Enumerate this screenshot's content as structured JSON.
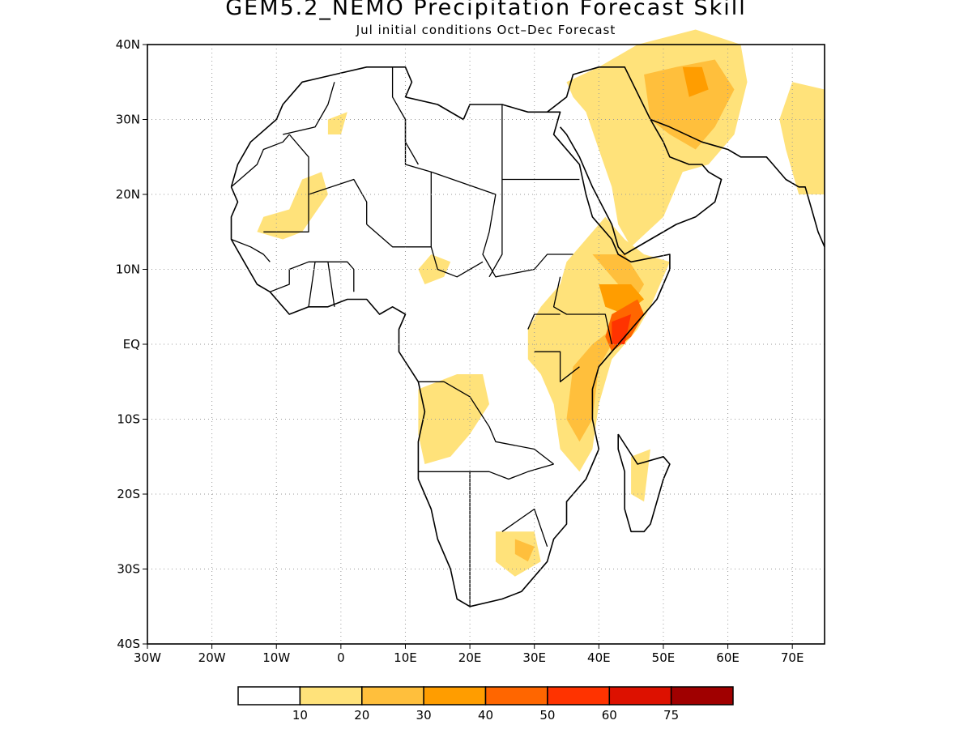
{
  "title": "GEM5.2_NEMO Precipitation Forecast Skill",
  "subtitle": "Jul initial conditions   Oct–Dec Forecast",
  "map": {
    "lon_range": [
      -30,
      75
    ],
    "lat_range": [
      -40,
      40
    ],
    "grid": true,
    "lat_ticks": [
      {
        "value": 40,
        "label": "40N"
      },
      {
        "value": 30,
        "label": "30N"
      },
      {
        "value": 20,
        "label": "20N"
      },
      {
        "value": 10,
        "label": "10N"
      },
      {
        "value": 0,
        "label": "EQ"
      },
      {
        "value": -10,
        "label": "10S"
      },
      {
        "value": -20,
        "label": "20S"
      },
      {
        "value": -30,
        "label": "30S"
      },
      {
        "value": -40,
        "label": "40S"
      }
    ],
    "lon_ticks": [
      {
        "value": -30,
        "label": "30W"
      },
      {
        "value": -20,
        "label": "20W"
      },
      {
        "value": -10,
        "label": "10W"
      },
      {
        "value": 0,
        "label": "0"
      },
      {
        "value": 10,
        "label": "10E"
      },
      {
        "value": 20,
        "label": "20E"
      },
      {
        "value": 30,
        "label": "30E"
      },
      {
        "value": 40,
        "label": "40E"
      },
      {
        "value": 50,
        "label": "50E"
      },
      {
        "value": 60,
        "label": "60E"
      },
      {
        "value": 70,
        "label": "70E"
      }
    ]
  },
  "legend": {
    "colors": [
      "#ffffff",
      "#ffe27a",
      "#ffbf3c",
      "#ff9d00",
      "#ff6600",
      "#ff3300",
      "#dd1100",
      "#a00000"
    ],
    "labels": [
      "10",
      "20",
      "30",
      "40",
      "50",
      "60",
      "75"
    ]
  },
  "skill_regions": [
    {
      "level": 1,
      "coords": [
        [
          38,
          14
        ],
        [
          41,
          17
        ],
        [
          44,
          14
        ],
        [
          47,
          12
        ],
        [
          51,
          11
        ],
        [
          48,
          5
        ],
        [
          46,
          2
        ],
        [
          42,
          -2
        ],
        [
          40,
          -8
        ],
        [
          39,
          -14
        ],
        [
          37,
          -17
        ],
        [
          34,
          -14
        ],
        [
          33,
          -8
        ],
        [
          31,
          -4
        ],
        [
          29,
          -2
        ],
        [
          29,
          2
        ],
        [
          31,
          5
        ],
        [
          34,
          8
        ],
        [
          35,
          11
        ]
      ]
    },
    {
      "level": 1,
      "coords": [
        [
          35,
          35
        ],
        [
          40,
          37
        ],
        [
          46,
          40
        ],
        [
          55,
          42
        ],
        [
          62,
          40
        ],
        [
          63,
          35
        ],
        [
          61,
          28
        ],
        [
          57,
          24
        ],
        [
          53,
          23
        ],
        [
          50,
          17
        ],
        [
          45,
          13
        ],
        [
          43,
          16
        ],
        [
          42,
          21
        ],
        [
          40,
          26
        ],
        [
          38,
          31
        ],
        [
          36,
          33
        ]
      ]
    },
    {
      "level": 1,
      "coords": [
        [
          70,
          35
        ],
        [
          75,
          34
        ],
        [
          75,
          20
        ],
        [
          71,
          20
        ],
        [
          69,
          26
        ],
        [
          68,
          30
        ]
      ]
    },
    {
      "level": 1,
      "coords": [
        [
          12,
          -6
        ],
        [
          18,
          -4
        ],
        [
          22,
          -4
        ],
        [
          23,
          -8
        ],
        [
          20,
          -12
        ],
        [
          17,
          -15
        ],
        [
          13,
          -16
        ],
        [
          12,
          -12
        ]
      ]
    },
    {
      "level": 1,
      "coords": [
        [
          24,
          -25
        ],
        [
          30,
          -25
        ],
        [
          31,
          -29
        ],
        [
          27,
          -31
        ],
        [
          24,
          -29
        ]
      ]
    },
    {
      "level": 1,
      "coords": [
        [
          -13,
          15
        ],
        [
          -9,
          14
        ],
        [
          -6,
          15
        ],
        [
          -2,
          20
        ],
        [
          -3,
          23
        ],
        [
          -6,
          22
        ],
        [
          -8,
          18
        ],
        [
          -12,
          17
        ]
      ]
    },
    {
      "level": 1,
      "coords": [
        [
          -2,
          30
        ],
        [
          1,
          31
        ],
        [
          0,
          28
        ],
        [
          -2,
          28
        ]
      ]
    },
    {
      "level": 1,
      "coords": [
        [
          14,
          12
        ],
        [
          17,
          11
        ],
        [
          16,
          9
        ],
        [
          13,
          8
        ],
        [
          12,
          10
        ]
      ]
    },
    {
      "level": 1,
      "coords": [
        [
          45,
          -15
        ],
        [
          48,
          -14
        ],
        [
          47,
          -21
        ],
        [
          45,
          -20
        ]
      ]
    },
    {
      "level": 2,
      "coords": [
        [
          39,
          12
        ],
        [
          44,
          12
        ],
        [
          47,
          8
        ],
        [
          45,
          5
        ],
        [
          42,
          2
        ],
        [
          39,
          0
        ],
        [
          36,
          -3
        ],
        [
          35,
          -10
        ],
        [
          37,
          -13
        ],
        [
          39,
          -10
        ],
        [
          40,
          -3
        ],
        [
          42,
          0
        ],
        [
          45,
          3
        ],
        [
          44,
          7
        ]
      ]
    },
    {
      "level": 2,
      "coords": [
        [
          47,
          36
        ],
        [
          52,
          37
        ],
        [
          58,
          38
        ],
        [
          61,
          34
        ],
        [
          58,
          29
        ],
        [
          55,
          26
        ],
        [
          51,
          28
        ],
        [
          48,
          30
        ]
      ]
    },
    {
      "level": 2,
      "coords": [
        [
          27,
          -26
        ],
        [
          30,
          -27
        ],
        [
          29,
          -29
        ],
        [
          27,
          -28
        ]
      ]
    },
    {
      "level": 3,
      "coords": [
        [
          40,
          8
        ],
        [
          45,
          8
        ],
        [
          47,
          6
        ],
        [
          44,
          4
        ],
        [
          41,
          5
        ]
      ]
    },
    {
      "level": 3,
      "coords": [
        [
          53,
          37
        ],
        [
          56,
          37
        ],
        [
          57,
          34
        ],
        [
          54,
          33
        ]
      ]
    },
    {
      "level": 4,
      "coords": [
        [
          42,
          4
        ],
        [
          46,
          6
        ],
        [
          47,
          4
        ],
        [
          45,
          1
        ],
        [
          42,
          -1
        ],
        [
          41,
          1
        ]
      ]
    },
    {
      "level": 5,
      "coords": [
        [
          42,
          3
        ],
        [
          45,
          4
        ],
        [
          44,
          0
        ],
        [
          42,
          0
        ]
      ]
    }
  ],
  "coastline": [
    [
      [
        -17,
        21
      ],
      [
        -16,
        24
      ],
      [
        -14,
        27
      ],
      [
        -10,
        30
      ],
      [
        -9,
        32
      ],
      [
        -6,
        35
      ],
      [
        -1,
        36
      ],
      [
        4,
        37
      ],
      [
        10,
        37
      ],
      [
        11,
        35
      ],
      [
        10,
        33
      ],
      [
        15,
        32
      ],
      [
        19,
        30
      ],
      [
        20,
        32
      ],
      [
        25,
        32
      ],
      [
        29,
        31
      ],
      [
        32,
        31
      ],
      [
        34,
        31
      ],
      [
        33,
        28
      ],
      [
        34,
        27
      ],
      [
        37,
        24
      ],
      [
        38,
        20
      ],
      [
        39,
        17
      ],
      [
        42,
        14
      ],
      [
        43,
        12
      ],
      [
        45,
        11
      ],
      [
        51,
        12
      ],
      [
        51,
        10
      ],
      [
        49,
        6
      ],
      [
        47,
        4
      ],
      [
        44,
        1
      ],
      [
        42,
        -1
      ],
      [
        40,
        -3
      ],
      [
        39,
        -6
      ],
      [
        39,
        -10
      ],
      [
        40,
        -14
      ],
      [
        38,
        -18
      ],
      [
        35,
        -21
      ],
      [
        35,
        -24
      ],
      [
        33,
        -26
      ],
      [
        32,
        -29
      ],
      [
        30,
        -31
      ],
      [
        28,
        -33
      ],
      [
        25,
        -34
      ],
      [
        20,
        -35
      ],
      [
        18,
        -34
      ],
      [
        17,
        -30
      ],
      [
        15,
        -26
      ],
      [
        14,
        -22
      ],
      [
        12,
        -18
      ],
      [
        12,
        -13
      ],
      [
        13,
        -9
      ],
      [
        12,
        -5
      ],
      [
        9,
        -1
      ],
      [
        9,
        2
      ],
      [
        10,
        4
      ],
      [
        8,
        5
      ],
      [
        6,
        4
      ],
      [
        4,
        6
      ],
      [
        1,
        6
      ],
      [
        -2,
        5
      ],
      [
        -5,
        5
      ],
      [
        -8,
        4
      ],
      [
        -11,
        7
      ],
      [
        -13,
        8
      ],
      [
        -15,
        11
      ],
      [
        -17,
        14
      ],
      [
        -17,
        17
      ],
      [
        -16,
        19
      ],
      [
        -17,
        21
      ]
    ],
    [
      [
        43,
        -12
      ],
      [
        46,
        -16
      ],
      [
        50,
        -15
      ],
      [
        51,
        -16
      ],
      [
        50,
        -18
      ],
      [
        48,
        -24
      ],
      [
        47,
        -25
      ],
      [
        45,
        -25
      ],
      [
        44,
        -22
      ],
      [
        44,
        -17
      ],
      [
        43,
        -14
      ],
      [
        43,
        -12
      ]
    ],
    [
      [
        32,
        31
      ],
      [
        35,
        33
      ],
      [
        36,
        36
      ],
      [
        40,
        37
      ],
      [
        44,
        37
      ],
      [
        48,
        30
      ],
      [
        50,
        27
      ],
      [
        51,
        25
      ],
      [
        54,
        24
      ],
      [
        56,
        24
      ],
      [
        57,
        23
      ],
      [
        59,
        22
      ],
      [
        58,
        19
      ],
      [
        55,
        17
      ],
      [
        52,
        16
      ],
      [
        48,
        14
      ],
      [
        44,
        12
      ],
      [
        43,
        13
      ],
      [
        42,
        16
      ],
      [
        39,
        21
      ],
      [
        37,
        25
      ],
      [
        35,
        28
      ],
      [
        34,
        29
      ]
    ],
    [
      [
        48,
        30
      ],
      [
        51,
        29
      ],
      [
        56,
        27
      ],
      [
        60,
        26
      ],
      [
        62,
        25
      ],
      [
        66,
        25
      ],
      [
        67,
        24
      ],
      [
        69,
        22
      ],
      [
        71,
        21
      ],
      [
        72,
        21
      ],
      [
        73,
        18
      ],
      [
        74,
        15
      ],
      [
        75,
        13
      ]
    ]
  ],
  "borders": [
    [
      [
        -9,
        28
      ],
      [
        -4,
        29
      ],
      [
        -2,
        32
      ],
      [
        -1,
        35
      ]
    ],
    [
      [
        -8,
        28
      ],
      [
        -9,
        27
      ],
      [
        -12,
        26
      ],
      [
        -13,
        24
      ],
      [
        -17,
        21
      ]
    ],
    [
      [
        -8,
        28
      ],
      [
        -5,
        25
      ],
      [
        -5,
        20
      ]
    ],
    [
      [
        -12,
        15
      ],
      [
        -9,
        15
      ],
      [
        -5,
        15
      ],
      [
        -5,
        20
      ]
    ],
    [
      [
        -5,
        20
      ],
      [
        2,
        22
      ],
      [
        4,
        19
      ],
      [
        4,
        16
      ]
    ],
    [
      [
        8,
        37
      ],
      [
        8,
        33
      ],
      [
        10,
        30
      ],
      [
        10,
        27
      ],
      [
        12,
        24
      ]
    ],
    [
      [
        10,
        30
      ],
      [
        10,
        24
      ],
      [
        14,
        23
      ],
      [
        24,
        20
      ]
    ],
    [
      [
        25,
        32
      ],
      [
        25,
        20
      ],
      [
        25,
        12
      ],
      [
        23,
        9
      ]
    ],
    [
      [
        25,
        22
      ],
      [
        37,
        22
      ]
    ],
    [
      [
        24,
        20
      ],
      [
        23,
        15
      ],
      [
        22,
        12
      ],
      [
        24,
        9
      ],
      [
        30,
        10
      ],
      [
        32,
        12
      ],
      [
        36,
        12
      ]
    ],
    [
      [
        4,
        16
      ],
      [
        8,
        13
      ],
      [
        14,
        13
      ],
      [
        14,
        23
      ]
    ],
    [
      [
        14,
        13
      ],
      [
        15,
        10
      ],
      [
        18,
        9
      ],
      [
        22,
        11
      ]
    ],
    [
      [
        34,
        9
      ],
      [
        33,
        5
      ],
      [
        35,
        4
      ],
      [
        41,
        4
      ],
      [
        42,
        0
      ]
    ],
    [
      [
        30,
        -1
      ],
      [
        34,
        -1
      ],
      [
        34,
        -5
      ],
      [
        37,
        -3
      ]
    ],
    [
      [
        29,
        2
      ],
      [
        30,
        4
      ],
      [
        34,
        4
      ]
    ],
    [
      [
        12,
        -5
      ],
      [
        16,
        -5
      ],
      [
        20,
        -7
      ],
      [
        23,
        -11
      ],
      [
        24,
        -13
      ],
      [
        30,
        -14
      ],
      [
        33,
        -16
      ]
    ],
    [
      [
        12,
        -17
      ],
      [
        16,
        -17
      ],
      [
        23,
        -17
      ],
      [
        26,
        -18
      ],
      [
        29,
        -17
      ],
      [
        33,
        -16
      ]
    ],
    [
      [
        20,
        -17
      ],
      [
        20,
        -22
      ],
      [
        20,
        -28
      ],
      [
        20,
        -35
      ]
    ],
    [
      [
        25,
        -25
      ],
      [
        30,
        -22
      ],
      [
        32,
        -27
      ]
    ],
    [
      [
        -11,
        7
      ],
      [
        -8,
        8
      ],
      [
        -8,
        10
      ],
      [
        -5,
        11
      ],
      [
        -3,
        11
      ],
      [
        1,
        11
      ],
      [
        2,
        10
      ],
      [
        2,
        7
      ]
    ],
    [
      [
        -5,
        5
      ],
      [
        -4,
        11
      ],
      [
        -2,
        11
      ],
      [
        -1,
        5
      ]
    ],
    [
      [
        -17,
        14
      ],
      [
        -14,
        13
      ],
      [
        -12,
        12
      ],
      [
        -11,
        11
      ]
    ]
  ]
}
